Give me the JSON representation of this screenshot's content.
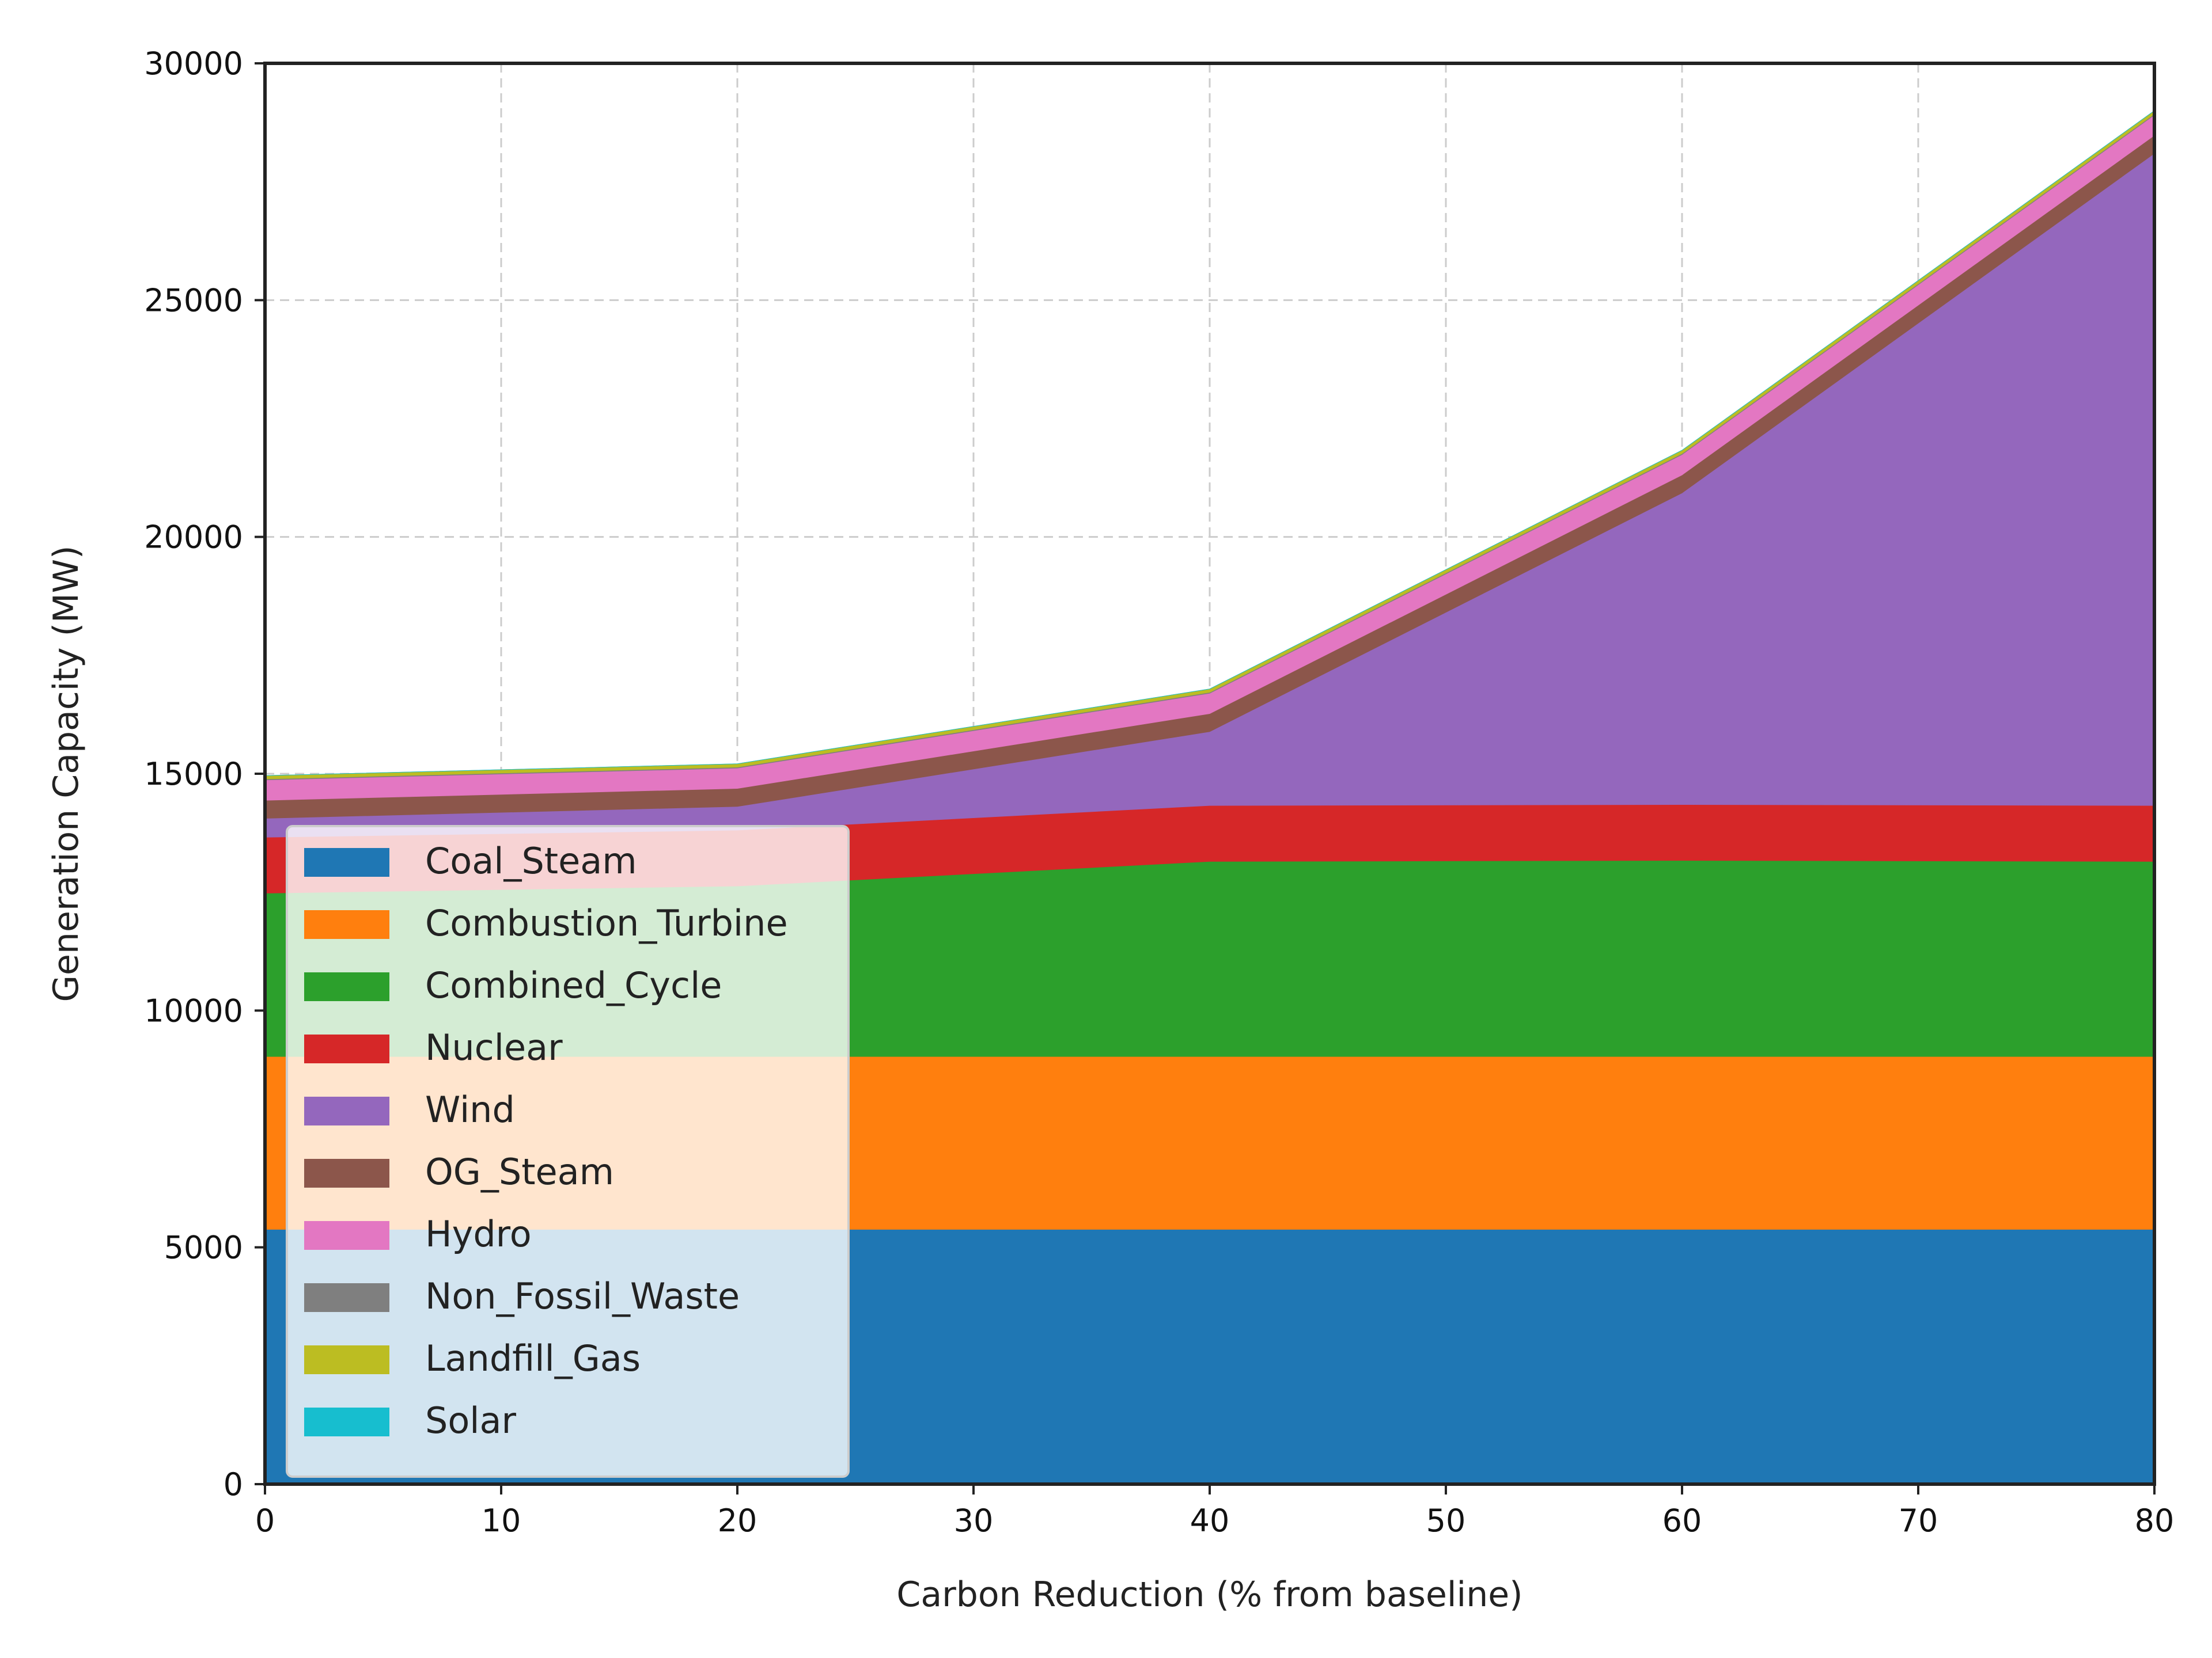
{
  "chart_data": {
    "type": "area",
    "stacked": true,
    "x": [
      0,
      20,
      40,
      60,
      80
    ],
    "xlabel": "Carbon Reduction (% from baseline)",
    "ylabel": "Generation Capacity (MW)",
    "xlim": [
      0,
      80
    ],
    "ylim": [
      0,
      30000
    ],
    "xticks": [
      0,
      10,
      20,
      30,
      40,
      50,
      60,
      70,
      80
    ],
    "yticks": [
      0,
      5000,
      10000,
      15000,
      20000,
      25000,
      30000
    ],
    "grid": true,
    "legend_position": "lower-left",
    "series": [
      {
        "name": "Coal_Steam",
        "color": "#1f77b4",
        "values": [
          5380,
          5380,
          5380,
          5380,
          5380
        ]
      },
      {
        "name": "Combustion_Turbine",
        "color": "#ff7f0e",
        "values": [
          3650,
          3650,
          3650,
          3650,
          3650
        ]
      },
      {
        "name": "Combined_Cycle",
        "color": "#2ca02c",
        "values": [
          3450,
          3600,
          4120,
          4140,
          4120
        ]
      },
      {
        "name": "Nuclear",
        "color": "#d62728",
        "values": [
          1180,
          1180,
          1180,
          1180,
          1180
        ]
      },
      {
        "name": "Wind",
        "color": "#9467bd",
        "values": [
          400,
          500,
          1560,
          6580,
          13770
        ]
      },
      {
        "name": "OG_Steam",
        "color": "#8c564b",
        "values": [
          380,
          380,
          380,
          380,
          380
        ]
      },
      {
        "name": "Hydro",
        "color": "#e377c2",
        "values": [
          430,
          430,
          430,
          430,
          430
        ]
      },
      {
        "name": "Non_Fossil_Waste",
        "color": "#7f7f7f",
        "values": [
          20,
          20,
          20,
          20,
          20
        ]
      },
      {
        "name": "Landfill_Gas",
        "color": "#bcbd22",
        "values": [
          70,
          70,
          70,
          70,
          70
        ]
      },
      {
        "name": "Solar",
        "color": "#17becf",
        "values": [
          0,
          0,
          0,
          0,
          0
        ]
      }
    ]
  }
}
